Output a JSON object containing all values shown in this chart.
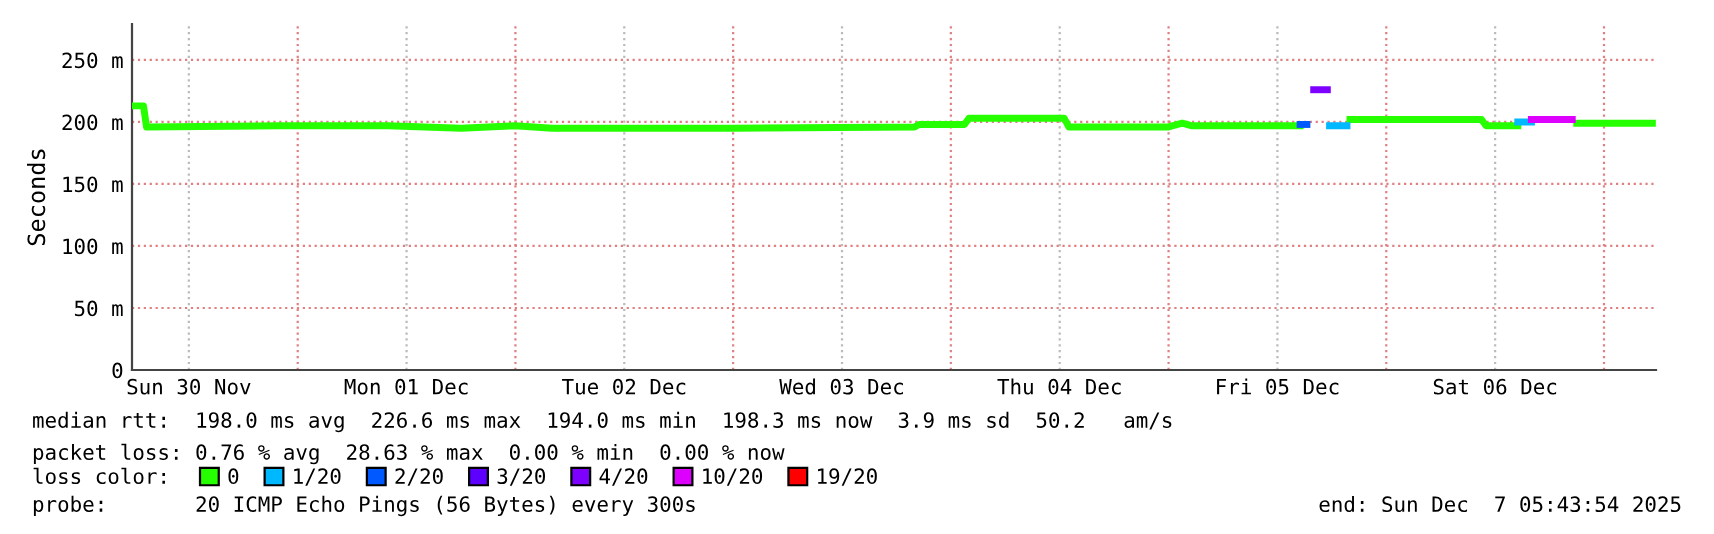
{
  "chart_data": {
    "type": "line",
    "ylabel": "Seconds",
    "xlim": [
      "2025-11-30T05:44",
      "2025-12-07T05:44"
    ],
    "xticks": [
      {
        "value": "2025-11-30T12:00",
        "label": "Sun 30 Nov"
      },
      {
        "value": "2025-12-01T00:00",
        "label": null
      },
      {
        "value": "2025-12-01T12:00",
        "label": "Mon 01 Dec"
      },
      {
        "value": "2025-12-02T00:00",
        "label": null
      },
      {
        "value": "2025-12-02T12:00",
        "label": "Tue 02 Dec"
      },
      {
        "value": "2025-12-03T00:00",
        "label": null
      },
      {
        "value": "2025-12-03T12:00",
        "label": "Wed 03 Dec"
      },
      {
        "value": "2025-12-04T00:00",
        "label": null
      },
      {
        "value": "2025-12-04T12:00",
        "label": "Thu 04 Dec"
      },
      {
        "value": "2025-12-05T00:00",
        "label": null
      },
      {
        "value": "2025-12-05T12:00",
        "label": "Fri 05 Dec"
      },
      {
        "value": "2025-12-06T00:00",
        "label": null
      },
      {
        "value": "2025-12-06T12:00",
        "label": "Sat 06 Dec"
      },
      {
        "value": "2025-12-07T00:00",
        "label": null
      }
    ],
    "ylim": [
      0,
      279
    ],
    "yticks": [
      0,
      {
        "value": 50,
        "label": "50 m"
      },
      {
        "value": 100,
        "label": "100 m"
      },
      {
        "value": 150,
        "label": "150 m"
      },
      {
        "value": 200,
        "label": "200 m"
      },
      {
        "value": 250,
        "label": "250 m"
      }
    ],
    "grid": true,
    "legend": "bottom",
    "legend_title": "loss color:",
    "marker": "none",
    "line_style": "solid",
    "series": [
      {
        "name": "0",
        "color": "#26ff00",
        "x": [
          "2025-11-30T05:44",
          "2025-11-30T07:00",
          "2025-11-30T07:20",
          "2025-11-30T22:00",
          "2025-12-01T10:00",
          "2025-12-01T18:00",
          "2025-12-02T00:00",
          "2025-12-02T04:00",
          "2025-12-02T14:00",
          "2025-12-03T00:00",
          "2025-12-03T20:00",
          "2025-12-03T20:30",
          "2025-12-04T01:30",
          "2025-12-04T02:00",
          "2025-12-04T12:30",
          "2025-12-04T13:00",
          "2025-12-05T00:00",
          "2025-12-05T01:30",
          "2025-12-05T02:30",
          "2025-12-05T14:30",
          "2025-12-05T17:00",
          "2025-12-05T20:00",
          "2025-12-06T10:30",
          "2025-12-06T11:00",
          "2025-12-06T14:30",
          "2025-12-06T17:00",
          "2025-12-06T21:00",
          "2025-12-07T05:20"
        ],
        "values": [
          213,
          213,
          196,
          197,
          197,
          195,
          197,
          195,
          195,
          195,
          196,
          198,
          198,
          203,
          203,
          196,
          196,
          199,
          197,
          197,
          null,
          202,
          202,
          197,
          197,
          null,
          199,
          199
        ]
      },
      {
        "name": "1/20",
        "color": "#00b8ff",
        "x": [
          "2025-12-05T17:45",
          "2025-12-05T19:40",
          "2025-12-06T00:00",
          "2025-12-06T14:30",
          "2025-12-06T16:00"
        ],
        "values": [
          197,
          197,
          null,
          200,
          200
        ]
      },
      {
        "name": "2/20",
        "color": "#0059ff",
        "x": [
          "2025-12-05T14:30",
          "2025-12-05T15:15"
        ],
        "values": [
          198,
          198
        ]
      },
      {
        "name": "3/20",
        "color": "#5e00ff"
      },
      {
        "name": "4/20",
        "color": "#7e00ff",
        "x": [
          "2025-12-05T16:00",
          "2025-12-05T17:30"
        ],
        "values": [
          226,
          226
        ]
      },
      {
        "name": "10/20",
        "color": "#dd00ff",
        "x": [
          "2025-12-06T16:00",
          "2025-12-06T20:30"
        ],
        "values": [
          202,
          202
        ]
      },
      {
        "name": "19/20",
        "color": "#ff0000"
      }
    ],
    "annotations": [
      "median rtt:  198.0 ms avg  226.6 ms max  194.0 ms min  198.3 ms now  3.9 ms sd  50.2   am/s",
      "packet loss: 0.76 % avg  28.63 % max  0.00 % min  0.00 % now",
      "probe:       20 ICMP Echo Pings (56 Bytes) every 300s",
      "end: Sun Dec  7 05:43:54 2025"
    ]
  }
}
